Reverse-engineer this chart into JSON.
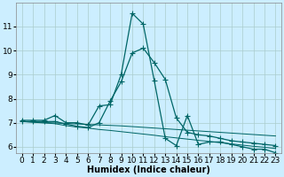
{
  "xlabel": "Humidex (Indice chaleur)",
  "bg_color": "#cceeff",
  "grid_color": "#aacccc",
  "line_color": "#006666",
  "x_data": [
    0,
    1,
    2,
    3,
    4,
    5,
    6,
    7,
    8,
    9,
    10,
    11,
    12,
    13,
    14,
    15,
    16,
    17,
    18,
    19,
    20,
    21,
    22,
    23
  ],
  "series1_y": [
    7.1,
    7.1,
    7.1,
    7.3,
    7.0,
    7.0,
    6.9,
    7.7,
    7.75,
    9.0,
    11.55,
    11.1,
    8.75,
    6.35,
    6.05,
    7.3,
    6.1,
    6.2,
    6.2,
    6.1,
    6.0,
    5.9,
    5.9,
    5.75
  ],
  "series2_y": [
    7.05,
    7.05,
    7.05,
    7.05,
    6.95,
    6.85,
    6.8,
    7.0,
    7.9,
    8.7,
    9.9,
    10.1,
    9.5,
    8.8,
    7.2,
    6.6,
    6.5,
    6.45,
    6.35,
    6.25,
    6.2,
    6.15,
    6.1,
    6.05
  ],
  "series3_y": [
    7.05,
    7.02,
    6.99,
    6.96,
    6.88,
    6.82,
    6.78,
    6.72,
    6.68,
    6.63,
    6.58,
    6.53,
    6.48,
    6.42,
    6.37,
    6.32,
    6.27,
    6.22,
    6.17,
    6.12,
    6.07,
    6.02,
    5.98,
    5.93
  ],
  "series4_y": [
    7.05,
    7.03,
    7.01,
    6.99,
    6.97,
    6.95,
    6.93,
    6.91,
    6.89,
    6.87,
    6.84,
    6.81,
    6.78,
    6.75,
    6.72,
    6.69,
    6.66,
    6.63,
    6.6,
    6.57,
    6.54,
    6.51,
    6.48,
    6.45
  ],
  "ylim": [
    5.75,
    12.0
  ],
  "xlim": [
    -0.5,
    23.5
  ],
  "yticks": [
    6,
    7,
    8,
    9,
    10,
    11
  ],
  "xticks": [
    0,
    1,
    2,
    3,
    4,
    5,
    6,
    7,
    8,
    9,
    10,
    11,
    12,
    13,
    14,
    15,
    16,
    17,
    18,
    19,
    20,
    21,
    22,
    23
  ],
  "marker": "+",
  "markersize": 4,
  "linewidth": 0.9,
  "xlabel_fontsize": 7,
  "tick_fontsize": 6.5
}
